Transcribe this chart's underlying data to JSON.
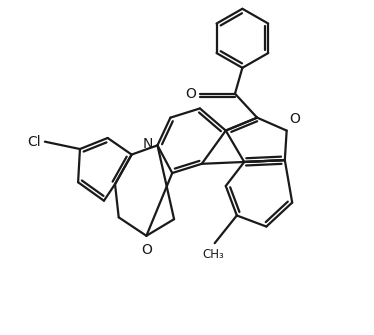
{
  "background_color": "#ffffff",
  "line_color": "#1a1a1a",
  "line_width": 1.6,
  "figsize": [
    3.74,
    3.35
  ],
  "dpi": 100,
  "xlim": [
    0,
    10
  ],
  "ylim": [
    0,
    9.0
  ],
  "label_fontsize": 10
}
